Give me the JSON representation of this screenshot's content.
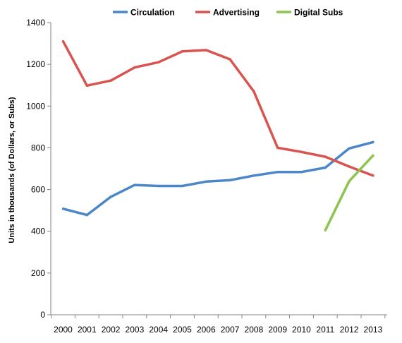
{
  "chart_data": {
    "type": "line",
    "title": "",
    "xlabel": "",
    "ylabel": "Units in thousands (of Dollars, or Subs)",
    "categories": [
      "2000",
      "2001",
      "2002",
      "2003",
      "2004",
      "2005",
      "2006",
      "2007",
      "2008",
      "2009",
      "2010",
      "2011",
      "2012",
      "2013"
    ],
    "ylim": [
      0,
      1400
    ],
    "yticks": [
      0,
      200,
      400,
      600,
      800,
      1000,
      1200,
      1400
    ],
    "grid": false,
    "legend_position": "top",
    "series": [
      {
        "name": "Circulation",
        "color": "#4a86c8",
        "values": [
          508,
          478,
          565,
          622,
          617,
          617,
          638,
          645,
          667,
          684,
          684,
          705,
          797,
          827
        ]
      },
      {
        "name": "Advertising",
        "color": "#d9534f",
        "values": [
          1310,
          1098,
          1122,
          1185,
          1210,
          1262,
          1268,
          1224,
          1070,
          800,
          780,
          757,
          710,
          667
        ]
      },
      {
        "name": "Digital Subs",
        "color": "#8dc44f",
        "values": [
          null,
          null,
          null,
          null,
          null,
          null,
          null,
          null,
          null,
          null,
          null,
          405,
          640,
          763
        ]
      }
    ]
  }
}
